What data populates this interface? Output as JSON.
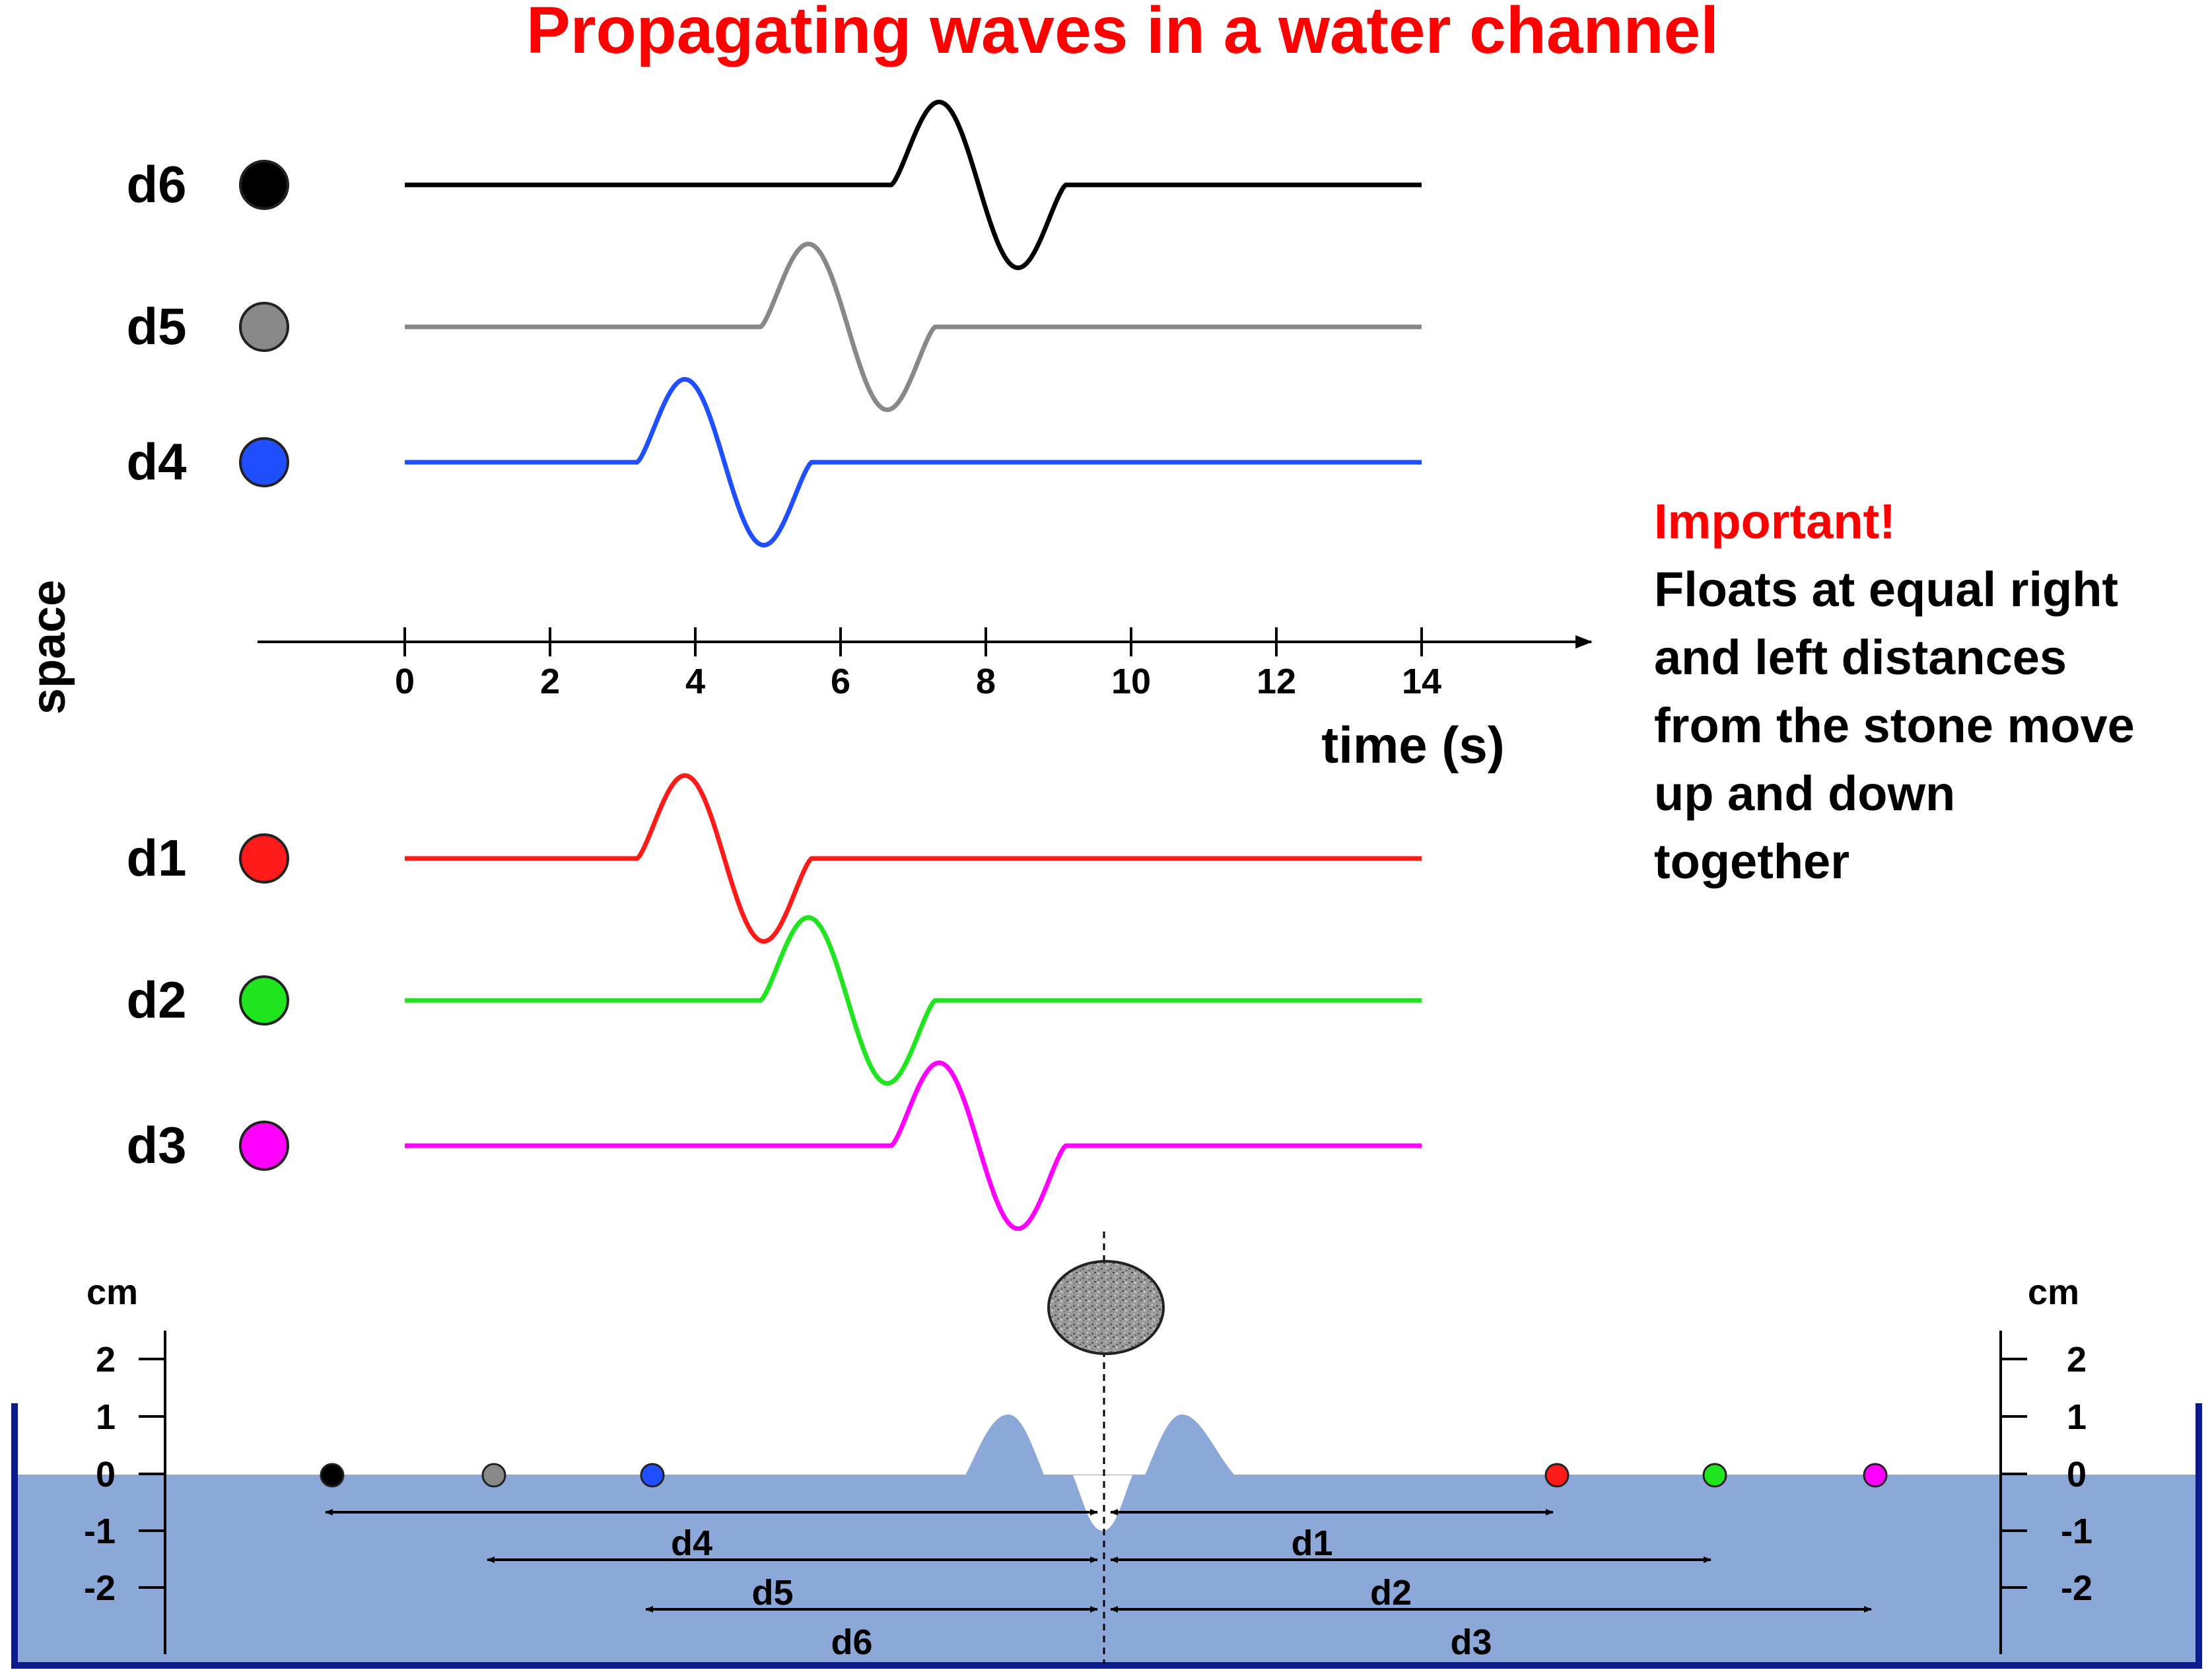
{
  "title": "Propagating waves in a water channel",
  "y_axis_label": "space",
  "x_axis_label": "time (s)",
  "time_ticks": [
    "0",
    "2",
    "4",
    "6",
    "8",
    "10",
    "12",
    "14"
  ],
  "traces": [
    {
      "label": "d6",
      "color": "#000000",
      "start": 6.7,
      "end": 9.1
    },
    {
      "label": "d5",
      "color": "#888888",
      "start": 4.9,
      "end": 7.3
    },
    {
      "label": "d4",
      "color": "#1f4fff",
      "start": 3.2,
      "end": 5.6
    },
    {
      "label": "d1",
      "color": "#ff1a1a",
      "start": 3.2,
      "end": 5.6
    },
    {
      "label": "d2",
      "color": "#1fe51f",
      "start": 4.9,
      "end": 7.3
    },
    {
      "label": "d3",
      "color": "#ff00ff",
      "start": 6.7,
      "end": 9.1
    }
  ],
  "note": {
    "heading": "Important!",
    "lines": [
      "Floats at equal right",
      "and left distances",
      "from the stone move",
      "up and down",
      "together"
    ]
  },
  "channel": {
    "unit_left": "cm",
    "unit_right": "cm",
    "ticks": [
      "2",
      "1",
      "0",
      "-1",
      "-2"
    ],
    "water_color": "#8ba8d9",
    "wall_color": "#0b1a8c",
    "left_floats": [
      "#000000",
      "#888888",
      "#1f4fff"
    ],
    "right_floats": [
      "#ff1a1a",
      "#1fe51f",
      "#ff00ff"
    ],
    "left_distances": [
      "d4",
      "d5",
      "d6"
    ],
    "right_distances": [
      "d1",
      "d2",
      "d3"
    ]
  }
}
